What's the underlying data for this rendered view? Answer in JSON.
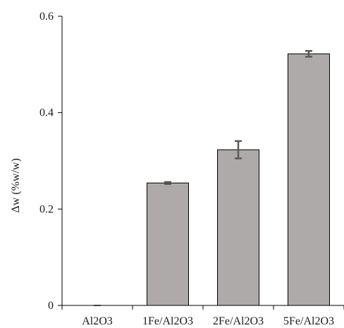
{
  "chart_data": {
    "type": "bar",
    "title": "",
    "xlabel": "",
    "ylabel": "Δw (%w/w)",
    "ylim": [
      0,
      0.6
    ],
    "yticks": [
      "0",
      "0.2",
      "0.4",
      "0.6"
    ],
    "ytick_values": [
      0,
      0.2,
      0.4,
      0.6
    ],
    "grid": false,
    "legend": "none",
    "categories": [
      "Al2O3",
      "1Fe/Al2O3",
      "2Fe/Al2O3",
      "5Fe/Al2O3"
    ],
    "values": [
      0.0,
      0.254,
      0.323,
      0.522
    ],
    "errors": [
      0.0,
      0.002,
      0.018,
      0.006
    ],
    "bar_color": "#aeaaa9",
    "bar_edge_color": "#000000",
    "error_bar_color": "#595959"
  }
}
